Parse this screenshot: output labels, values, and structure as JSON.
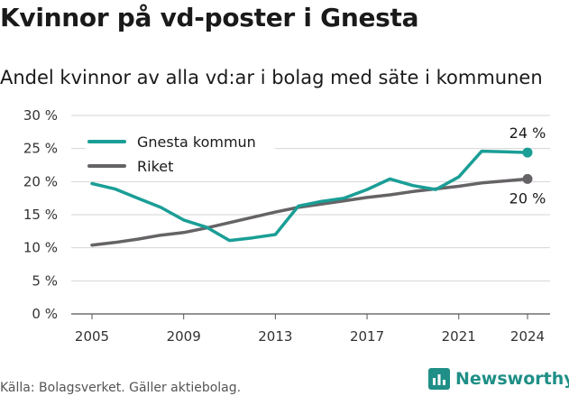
{
  "title": "Kvinnor på vd-poster i Gnesta",
  "subtitle": "Andel kvinnor av alla vd:ar i bolag med säte i kommunen",
  "source": "Källa: Bolagsverket. Gäller aktiebolag.",
  "brand": {
    "name": "Newsworthy",
    "icon": "newsworthy-logo-icon",
    "color": "#1f8f87"
  },
  "chart_data": {
    "type": "line",
    "x_ticks": [
      "2005",
      "2009",
      "2013",
      "2017",
      "2021",
      "2024"
    ],
    "y_ticks": [
      "30 %",
      "25 %",
      "20 %",
      "15 %",
      "10 %",
      "5 %",
      "0 %"
    ],
    "ylim": [
      0,
      30
    ],
    "xlim": [
      2005,
      2024
    ],
    "grid": "horizontal",
    "legend_position": "top-left",
    "series": [
      {
        "name": "Gnesta kommun",
        "color": "#1a9e96",
        "end_label": "24 %",
        "x": [
          2005,
          2006,
          2007,
          2008,
          2009,
          2010,
          2011,
          2012,
          2013,
          2014,
          2015,
          2016,
          2017,
          2018,
          2019,
          2020,
          2021,
          2022,
          2023,
          2024
        ],
        "y": [
          19.7,
          18.9,
          17.5,
          16.1,
          14.2,
          13.1,
          11.1,
          11.5,
          12.0,
          16.3,
          17.0,
          17.5,
          18.8,
          20.4,
          19.4,
          18.8,
          20.7,
          24.6,
          24.5,
          24.4
        ]
      },
      {
        "name": "Riket",
        "color": "#666366",
        "end_label": "20 %",
        "x": [
          2005,
          2006,
          2007,
          2008,
          2009,
          2010,
          2011,
          2012,
          2013,
          2014,
          2015,
          2016,
          2017,
          2018,
          2019,
          2020,
          2021,
          2022,
          2023,
          2024
        ],
        "y": [
          10.4,
          10.8,
          11.3,
          11.9,
          12.3,
          13.0,
          13.8,
          14.6,
          15.4,
          16.1,
          16.6,
          17.1,
          17.6,
          18.0,
          18.5,
          18.9,
          19.3,
          19.8,
          20.1,
          20.4
        ]
      }
    ]
  }
}
